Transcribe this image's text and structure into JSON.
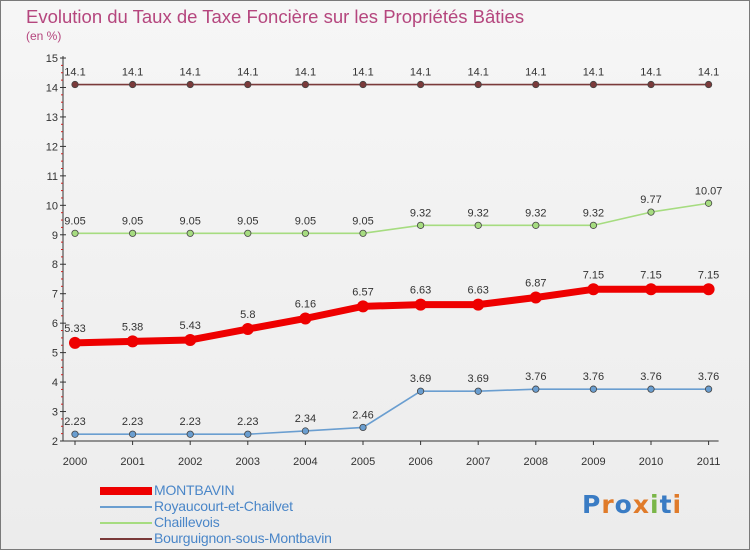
{
  "title": "Evolution du Taux de Taxe Foncière sur les Propriétés Bâties",
  "unit_label": "(en %)",
  "brand": "Proxiti",
  "chart_data": {
    "type": "line",
    "title": "Evolution du Taux de Taxe Foncière sur les Propriétés Bâties",
    "ylabel": "(en %)",
    "xlabel": "",
    "x": [
      "2000",
      "2001",
      "2002",
      "2003",
      "2004",
      "2005",
      "2006",
      "2007",
      "2008",
      "2009",
      "2010",
      "2011"
    ],
    "ylim": [
      2,
      15
    ],
    "yticks": [
      2,
      3,
      4,
      5,
      6,
      7,
      8,
      9,
      10,
      11,
      12,
      13,
      14,
      15
    ],
    "grid": false,
    "legend_position": "bottom-left",
    "series": [
      {
        "name": "MONTBAVIN",
        "color": "#ee0000",
        "values": [
          5.33,
          5.38,
          5.43,
          5.8,
          6.16,
          6.57,
          6.63,
          6.63,
          6.87,
          7.15,
          7.15,
          7.15
        ],
        "labels": [
          "5.33",
          "5.38",
          "5.43",
          "5.8",
          "6.16",
          "6.57",
          "6.63",
          "6.63",
          "6.87",
          "7.15",
          "7.15",
          "7.15"
        ]
      },
      {
        "name": "Royaucourt-et-Chailvet",
        "color": "#6a9ed0",
        "values": [
          2.23,
          2.23,
          2.23,
          2.23,
          2.34,
          2.46,
          3.69,
          3.69,
          3.76,
          3.76,
          3.76,
          3.76
        ],
        "labels": [
          "2.23",
          "2.23",
          "2.23",
          "2.23",
          "2.34",
          "2.46",
          "3.69",
          "3.69",
          "3.76",
          "3.76",
          "3.76",
          "3.76"
        ]
      },
      {
        "name": "Chaillevois",
        "color": "#a6dc80",
        "values": [
          9.05,
          9.05,
          9.05,
          9.05,
          9.05,
          9.05,
          9.32,
          9.32,
          9.32,
          9.32,
          9.77,
          10.07
        ],
        "labels": [
          "9.05",
          "9.05",
          "9.05",
          "9.05",
          "9.05",
          "9.05",
          "9.32",
          "9.32",
          "9.32",
          "9.32",
          "9.77",
          "10.07"
        ]
      },
      {
        "name": "Bourguignon-sous-Montbavin",
        "color": "#7a3a3a",
        "values": [
          14.1,
          14.1,
          14.1,
          14.1,
          14.1,
          14.1,
          14.1,
          14.1,
          14.1,
          14.1,
          14.1,
          14.1
        ],
        "labels": [
          "14.1",
          "14.1",
          "14.1",
          "14.1",
          "14.1",
          "14.1",
          "14.1",
          "14.1",
          "14.1",
          "14.1",
          "14.1",
          "14.1"
        ]
      }
    ]
  }
}
